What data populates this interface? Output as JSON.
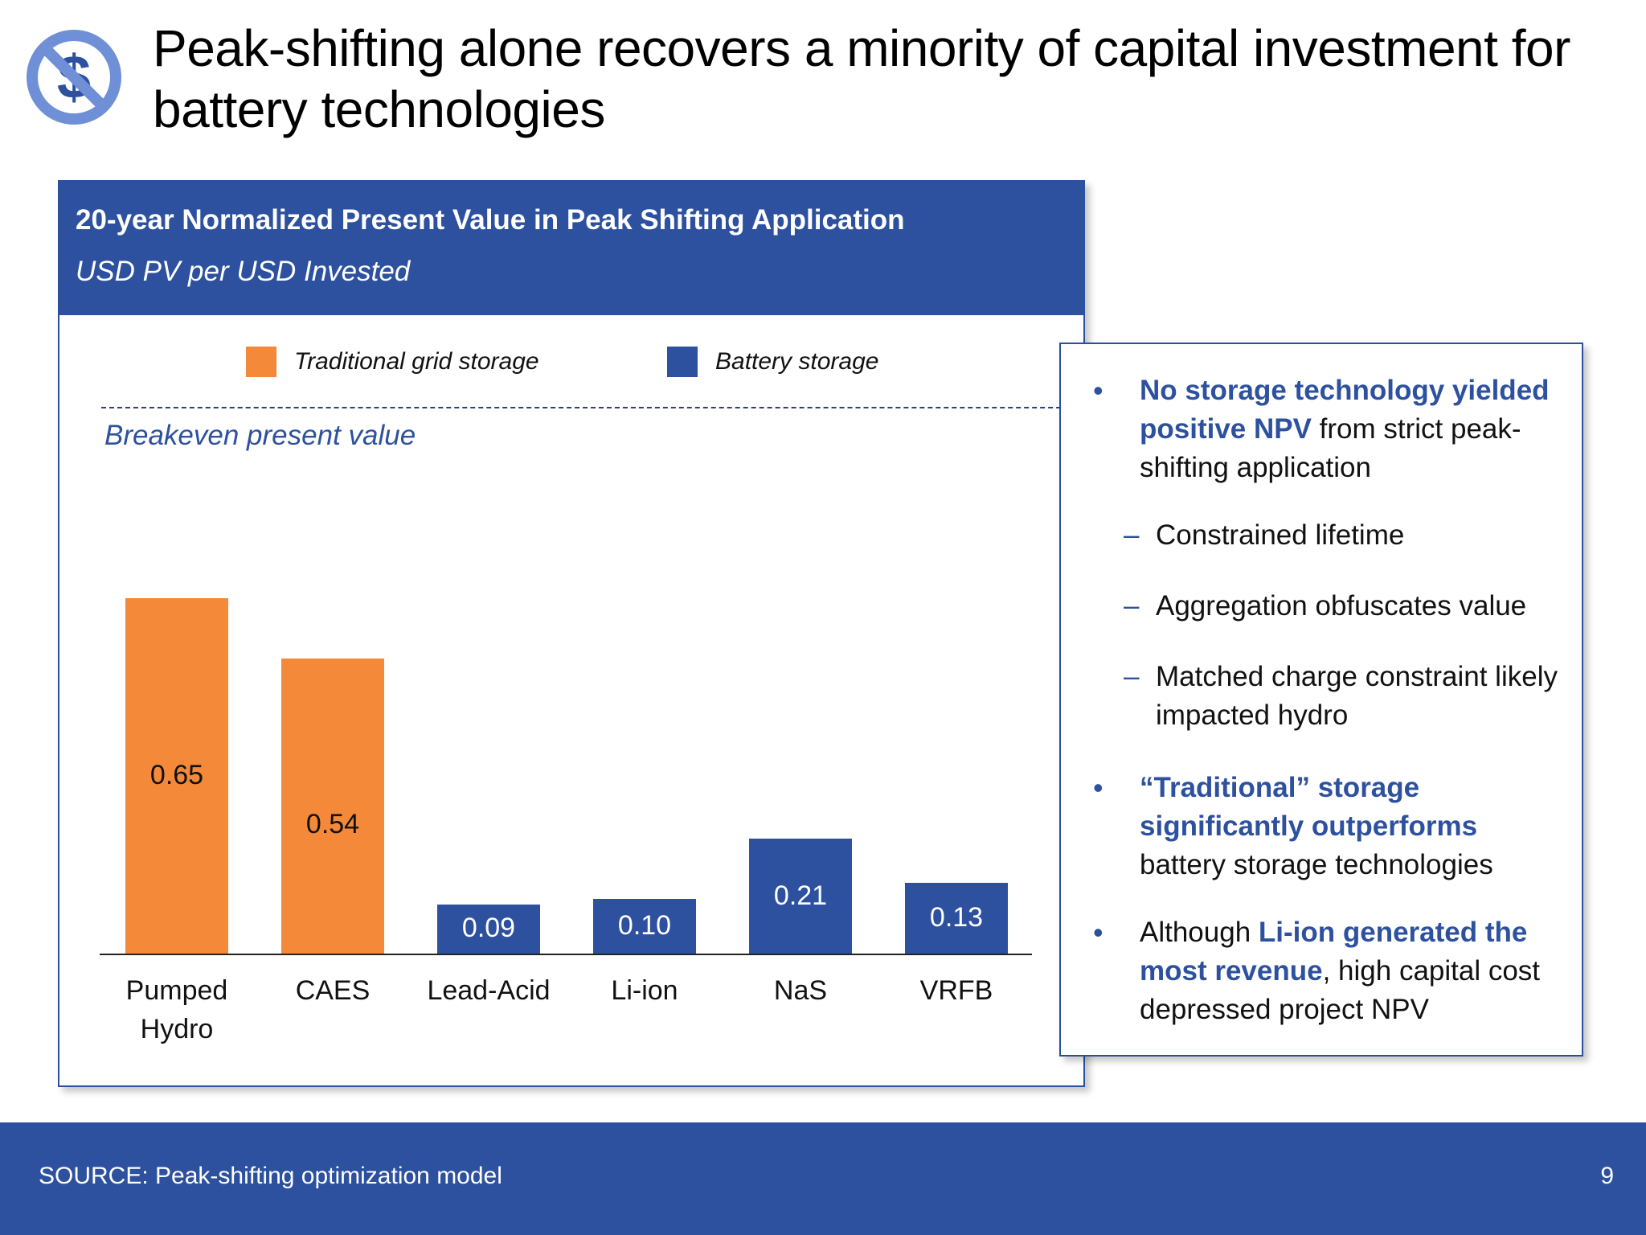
{
  "title": "Peak-shifting alone recovers a minority of capital investment for battery technologies",
  "icon": "no-dollar-icon",
  "colors": {
    "accent": "#2d519f",
    "traditional": "#f4893a",
    "battery": "#2d519f"
  },
  "chart_data": {
    "type": "bar",
    "title": "20-year Normalized Present Value in Peak Shifting Application",
    "subtitle": "USD PV per USD Invested",
    "legend": [
      {
        "name": "Traditional grid storage",
        "color": "#f4893a"
      },
      {
        "name": "Battery storage",
        "color": "#2d519f"
      }
    ],
    "reference_line": {
      "label": "Breakeven present value",
      "value": 1.0
    },
    "categories": [
      "Pumped Hydro",
      "CAES",
      "Lead-Acid",
      "Li-ion",
      "NaS",
      "VRFB"
    ],
    "category_lines": [
      [
        "Pumped",
        "Hydro"
      ],
      [
        "CAES"
      ],
      [
        "Lead-Acid"
      ],
      [
        "Li-ion"
      ],
      [
        "NaS"
      ],
      [
        "VRFB"
      ]
    ],
    "values": [
      0.65,
      0.54,
      0.09,
      0.1,
      0.21,
      0.13
    ],
    "value_labels": [
      "0.65",
      "0.54",
      "0.09",
      "0.10",
      "0.21",
      "0.13"
    ],
    "groups": [
      "Traditional grid storage",
      "Traditional grid storage",
      "Battery storage",
      "Battery storage",
      "Battery storage",
      "Battery storage"
    ],
    "ylim": [
      0,
      1.0
    ],
    "grid": false,
    "legend_position": "top"
  },
  "callout": {
    "b1_hl": "No storage technology yielded positive NPV",
    "b1_rest": " from strict peak-shifting application",
    "sub1": "Constrained lifetime",
    "sub2": "Aggregation obfuscates value",
    "sub3": "Matched charge constraint likely impacted hydro",
    "b2_hl": "“Traditional” storage significantly outperforms",
    "b2_rest": " battery storage technologies",
    "b3_pre": "Although ",
    "b3_hl": "Li-ion generated the most revenue",
    "b3_rest": ", high capital cost depressed project NPV"
  },
  "footer": {
    "source": "SOURCE: Peak-shifting optimization model",
    "page": "9"
  }
}
